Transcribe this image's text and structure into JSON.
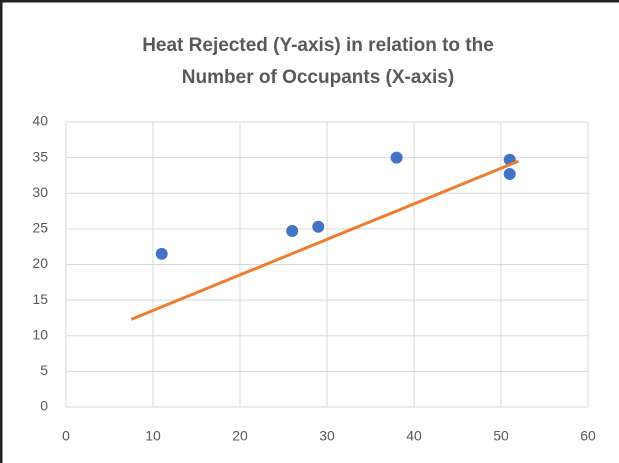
{
  "chart_data": {
    "type": "scatter",
    "title": [
      "Heat Rejected (Y-axis) in relation to the",
      "Number of Occupants (X-axis)"
    ],
    "series": [
      {
        "color": "#4472c4",
        "x": [
          11,
          26,
          29,
          38,
          51,
          51
        ],
        "values": [
          21.5,
          24.7,
          25.3,
          35,
          34.7,
          32.7
        ]
      }
    ],
    "trendline": {
      "color": "#ed7d31",
      "x": [
        7.5,
        52
      ],
      "values": [
        12.3,
        34.5
      ]
    },
    "xlim": [
      0,
      60
    ],
    "xticks": [
      0,
      10,
      20,
      30,
      40,
      50,
      60
    ],
    "ylim": [
      0,
      40
    ],
    "yticks": [
      0,
      5,
      10,
      15,
      20,
      25,
      30,
      35,
      40
    ],
    "grid": true
  }
}
